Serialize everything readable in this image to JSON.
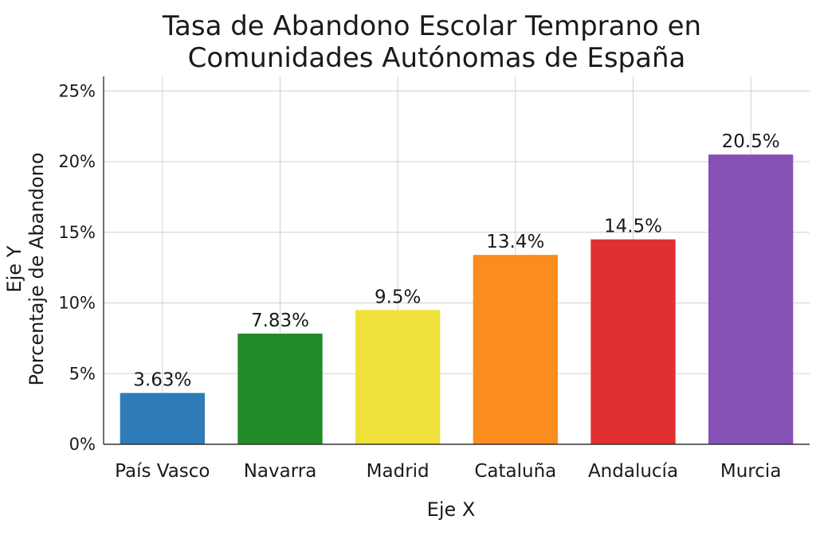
{
  "chart_data": {
    "type": "bar",
    "title_lines": [
      "Tasa de Abandono Escolar Temprano en",
      "Comunidades Autónomas de España"
    ],
    "xlabel": "Eje X",
    "ylabel_lines": [
      "Eje Y",
      "Porcentaje de Abandono"
    ],
    "categories": [
      "País Vasco",
      "Navarra",
      "Madrid",
      "Cataluña",
      "Andalucía",
      "Murcia"
    ],
    "values": [
      3.63,
      7.83,
      9.5,
      13.4,
      14.5,
      20.5
    ],
    "value_labels": [
      "3.63%",
      "7.83%",
      "9.5%",
      "13.4%",
      "14.5%",
      "20.5%"
    ],
    "colors": [
      "#2e7bb8",
      "#218b27",
      "#efe13a",
      "#fb8c1f",
      "#e03030",
      "#8651b5"
    ],
    "ylim": [
      0,
      26
    ],
    "yticks": [
      0,
      5,
      10,
      15,
      20,
      25
    ],
    "ytick_labels": [
      "0%",
      "5%",
      "10%",
      "15%",
      "20%",
      "25%"
    ],
    "grid": true
  }
}
